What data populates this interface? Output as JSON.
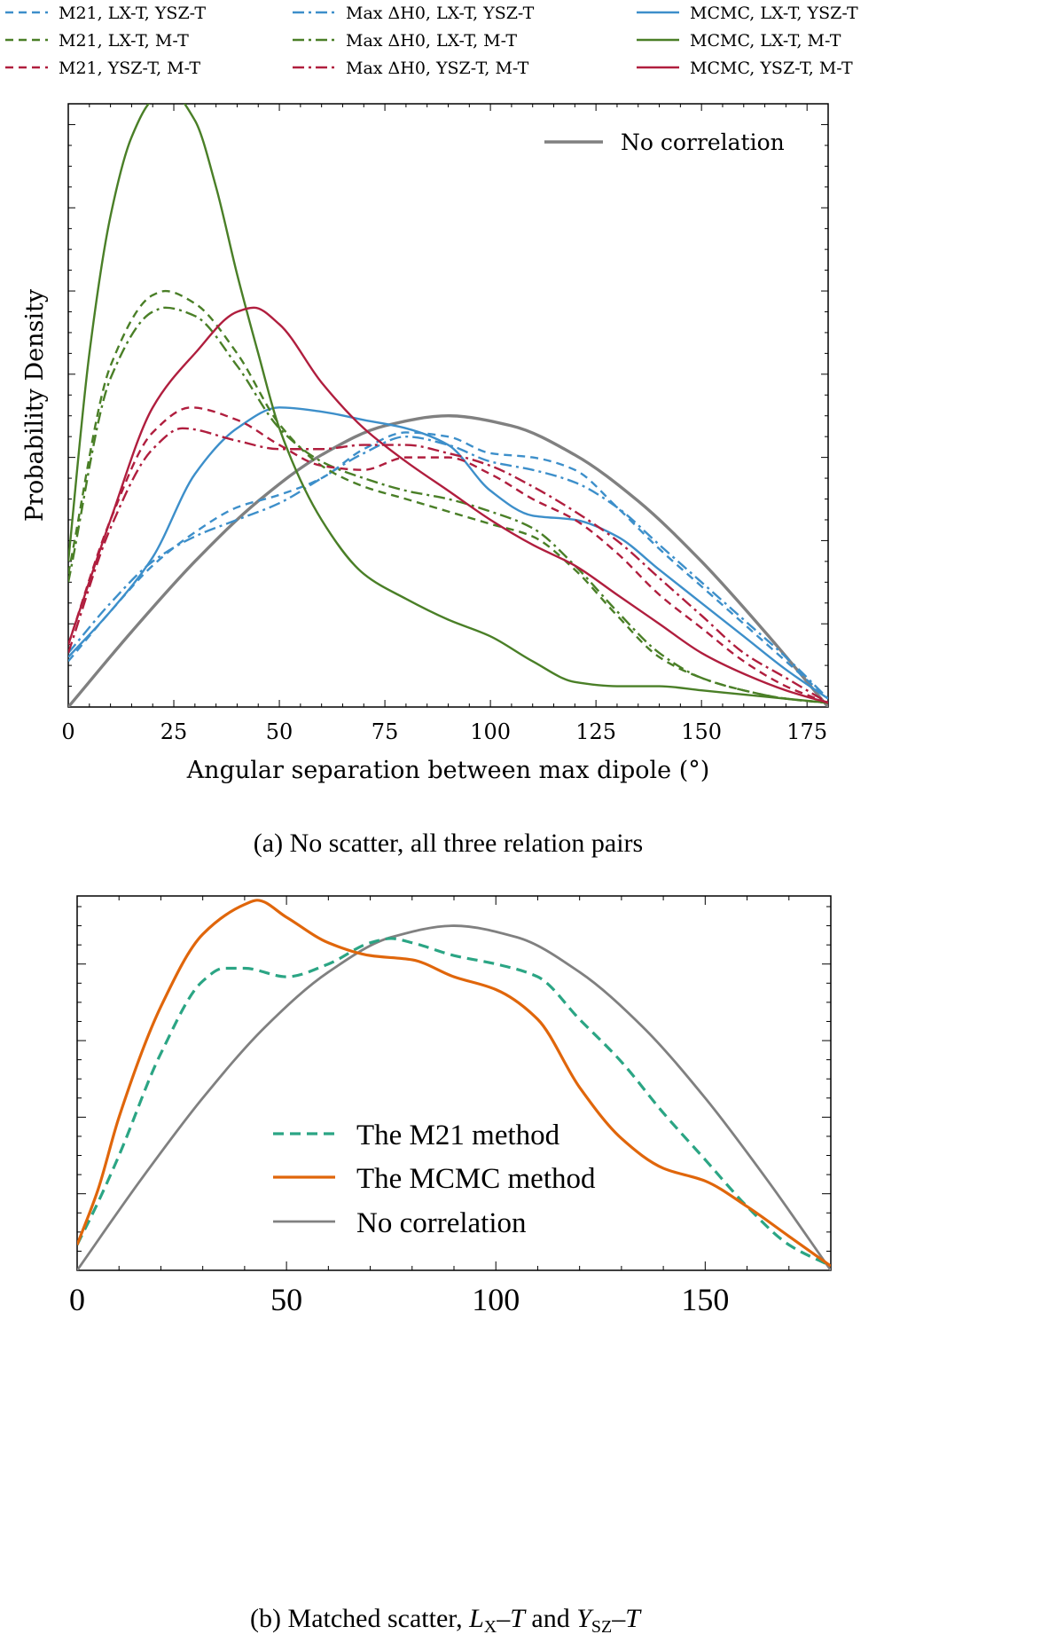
{
  "chart_data": [
    {
      "type": "line",
      "title": "",
      "caption": "(a) No scatter, all three relation pairs",
      "xlabel": "Angular separation between max dipole (°)",
      "ylabel": "Probability Density",
      "xlim": [
        0,
        180
      ],
      "ylim": [
        0,
        0.0145
      ],
      "xticks": [
        0,
        25,
        50,
        75,
        100,
        125,
        150,
        175
      ],
      "xtick_labels": [
        "0",
        "25",
        "50",
        "75",
        "100",
        "125",
        "150",
        "175"
      ],
      "top_legend": [
        "M21, LX-T, YSZ-T",
        "Max ΔH0, LX-T, YSZ-T",
        "MCMC, LX-T, YSZ-T",
        "M21, LX-T, M-T",
        "Max ΔH0, LX-T, M-T",
        "MCMC, LX-T, M-T",
        "M21, YSZ-T, M-T",
        "Max ΔH0, YSZ-T, M-T",
        "MCMC, YSZ-T, M-T"
      ],
      "inset_legend": [
        "No correlation"
      ],
      "legend_position": "above plot (3 columns) and upper-right",
      "colors": {
        "blue": "#3d8fca",
        "green": "#4a7f27",
        "red": "#b01e3e",
        "gray": "#808080"
      },
      "series": [
        {
          "name": "No correlation",
          "style": "solid",
          "color": "gray",
          "x": [
            0,
            15,
            30,
            45,
            60,
            75,
            90,
            105,
            120,
            135,
            150,
            165,
            180
          ],
          "y": [
            0,
            0.00181,
            0.0035,
            0.00495,
            0.00606,
            0.00676,
            0.007,
            0.00676,
            0.00606,
            0.00495,
            0.0035,
            0.00181,
            0
          ]
        },
        {
          "name": "M21, LX-T, YSZ-T",
          "style": "dashed",
          "color": "blue",
          "x": [
            0,
            10,
            20,
            30,
            40,
            50,
            60,
            70,
            80,
            90,
            100,
            110,
            120,
            130,
            140,
            150,
            160,
            170,
            180
          ],
          "y": [
            0.0011,
            0.0023,
            0.0034,
            0.0042,
            0.0048,
            0.0051,
            0.0055,
            0.0062,
            0.0066,
            0.0065,
            0.0061,
            0.006,
            0.0057,
            0.0048,
            0.0038,
            0.0029,
            0.002,
            0.0011,
            0.0002
          ]
        },
        {
          "name": "Max ΔH0, LX-T, YSZ-T",
          "style": "dashdot",
          "color": "blue",
          "x": [
            0,
            10,
            20,
            30,
            40,
            50,
            60,
            70,
            80,
            90,
            100,
            110,
            120,
            130,
            140,
            150,
            160,
            170,
            180
          ],
          "y": [
            0.0013,
            0.0025,
            0.0035,
            0.0041,
            0.0045,
            0.0049,
            0.0055,
            0.0061,
            0.0065,
            0.0063,
            0.0059,
            0.0057,
            0.0054,
            0.0048,
            0.0039,
            0.003,
            0.0021,
            0.0012,
            0.0002
          ]
        },
        {
          "name": "MCMC, LX-T, YSZ-T",
          "style": "solid",
          "color": "blue",
          "x": [
            0,
            10,
            20,
            30,
            40,
            50,
            60,
            70,
            80,
            90,
            100,
            110,
            120,
            130,
            140,
            150,
            160,
            170,
            180
          ],
          "y": [
            0.0012,
            0.0023,
            0.0036,
            0.0056,
            0.0067,
            0.0072,
            0.0071,
            0.0069,
            0.0067,
            0.0063,
            0.0052,
            0.0046,
            0.0045,
            0.0041,
            0.0033,
            0.0025,
            0.0017,
            0.0009,
            0.0002
          ]
        },
        {
          "name": "M21, LX-T, M-T",
          "style": "dashed",
          "color": "green",
          "x": [
            0,
            10,
            20,
            23,
            30,
            40,
            50,
            60,
            70,
            80,
            90,
            100,
            110,
            120,
            130,
            140,
            150,
            160,
            170,
            180
          ],
          "y": [
            0.0032,
            0.0082,
            0.0099,
            0.01,
            0.0097,
            0.0085,
            0.0068,
            0.0058,
            0.0053,
            0.005,
            0.0047,
            0.0044,
            0.0041,
            0.0033,
            0.0022,
            0.0012,
            0.0007,
            0.0004,
            0.0002,
            0.0001
          ]
        },
        {
          "name": "Max ΔH0, LX-T, M-T",
          "style": "dashdot",
          "color": "green",
          "x": [
            0,
            10,
            20,
            23,
            30,
            40,
            50,
            60,
            70,
            80,
            90,
            100,
            110,
            120,
            130,
            140,
            150,
            160,
            170,
            180
          ],
          "y": [
            0.003,
            0.0079,
            0.0095,
            0.0096,
            0.0094,
            0.0082,
            0.0067,
            0.0059,
            0.0055,
            0.0052,
            0.005,
            0.0047,
            0.0043,
            0.0034,
            0.0023,
            0.0013,
            0.0007,
            0.0004,
            0.0002,
            0.0001
          ]
        },
        {
          "name": "MCMC, LX-T, M-T",
          "style": "solid",
          "color": "green",
          "x": [
            0,
            5,
            10,
            15,
            20,
            24,
            30,
            35,
            40,
            45,
            50,
            60,
            70,
            80,
            90,
            100,
            110,
            120,
            130,
            140,
            150,
            160,
            170,
            180
          ],
          "y": [
            0.0035,
            0.0085,
            0.0118,
            0.0137,
            0.0146,
            0.0148,
            0.0141,
            0.0125,
            0.0104,
            0.0085,
            0.0067,
            0.0045,
            0.0032,
            0.0026,
            0.0021,
            0.0017,
            0.0011,
            0.0006,
            0.0005,
            0.0005,
            0.0004,
            0.0003,
            0.0002,
            0.0001
          ]
        },
        {
          "name": "M21, YSZ-T, M-T",
          "style": "dashed",
          "color": "red",
          "x": [
            0,
            10,
            20,
            29,
            40,
            50,
            60,
            70,
            80,
            90,
            100,
            110,
            120,
            130,
            140,
            150,
            160,
            170,
            180
          ],
          "y": [
            0.0015,
            0.0045,
            0.0066,
            0.0072,
            0.0069,
            0.0063,
            0.0058,
            0.0057,
            0.006,
            0.006,
            0.0056,
            0.005,
            0.0045,
            0.0037,
            0.0027,
            0.0019,
            0.0011,
            0.0005,
            0.0001
          ]
        },
        {
          "name": "Max ΔH0, YSZ-T, M-T",
          "style": "dashdot",
          "color": "red",
          "x": [
            0,
            10,
            20,
            27,
            40,
            50,
            60,
            70,
            80,
            90,
            100,
            110,
            120,
            130,
            140,
            150,
            160,
            170,
            180
          ],
          "y": [
            0.0013,
            0.0043,
            0.0062,
            0.0067,
            0.0064,
            0.0062,
            0.0062,
            0.0063,
            0.0063,
            0.0061,
            0.0058,
            0.0053,
            0.0047,
            0.004,
            0.0031,
            0.0022,
            0.0013,
            0.0007,
            0.0001
          ]
        },
        {
          "name": "MCMC, YSZ-T, M-T",
          "style": "solid",
          "color": "red",
          "x": [
            0,
            10,
            20,
            30,
            40,
            44,
            50,
            60,
            70,
            80,
            90,
            100,
            110,
            120,
            130,
            140,
            150,
            160,
            170,
            180
          ],
          "y": [
            0.0015,
            0.0045,
            0.0072,
            0.0085,
            0.0095,
            0.0096,
            0.0092,
            0.0078,
            0.0067,
            0.0059,
            0.0052,
            0.0045,
            0.0039,
            0.0034,
            0.0027,
            0.002,
            0.0013,
            0.0008,
            0.0004,
            0.0001
          ]
        }
      ]
    },
    {
      "type": "line",
      "title": "",
      "caption_parts": [
        "(b) Matched scatter, ",
        "L",
        "X",
        "–",
        "T",
        " and ",
        "Y",
        "SZ",
        "–",
        "T"
      ],
      "xlabel": "",
      "ylabel": "",
      "xlim": [
        0,
        180
      ],
      "ylim": [
        0,
        0.0088
      ],
      "xticks": [
        0,
        50,
        100,
        150
      ],
      "xtick_labels": [
        "0",
        "50",
        "100",
        "150"
      ],
      "legend": [
        "The M21 method",
        "The MCMC method",
        "No correlation"
      ],
      "legend_position": "lower-center",
      "colors": {
        "teal": "#2ba584",
        "orange": "#e0660b",
        "gray": "#808080"
      },
      "series": [
        {
          "name": "The M21 method",
          "style": "dashed",
          "color": "teal",
          "x": [
            0,
            5,
            10,
            20,
            30,
            35,
            40,
            50,
            60,
            70,
            75,
            80,
            90,
            100,
            110,
            120,
            130,
            140,
            150,
            160,
            170,
            180
          ],
          "y": [
            0.0006,
            0.0016,
            0.0027,
            0.0051,
            0.0068,
            0.0071,
            0.0071,
            0.0069,
            0.0072,
            0.0077,
            0.0078,
            0.0077,
            0.0074,
            0.0072,
            0.0069,
            0.0059,
            0.0049,
            0.0037,
            0.0026,
            0.0015,
            0.0006,
            0.0001
          ]
        },
        {
          "name": "The MCMC method",
          "style": "solid",
          "color": "orange",
          "x": [
            0,
            5,
            10,
            20,
            30,
            40,
            43,
            50,
            60,
            70,
            80,
            90,
            100,
            110,
            120,
            130,
            140,
            150,
            160,
            170,
            180
          ],
          "y": [
            0.0006,
            0.0019,
            0.0036,
            0.0062,
            0.0079,
            0.0086,
            0.0087,
            0.0083,
            0.0077,
            0.0074,
            0.0073,
            0.0069,
            0.0066,
            0.0059,
            0.0043,
            0.0031,
            0.0024,
            0.0021,
            0.0015,
            0.0008,
            0.0001
          ]
        },
        {
          "name": "No correlation",
          "style": "solid",
          "color": "gray",
          "x": [
            0,
            15,
            30,
            45,
            60,
            75,
            90,
            105,
            120,
            135,
            150,
            165,
            180
          ],
          "y": [
            0,
            0.0021,
            0.00405,
            0.00573,
            0.00701,
            0.00783,
            0.0081,
            0.00783,
            0.00701,
            0.00573,
            0.00405,
            0.0021,
            0
          ]
        }
      ]
    }
  ]
}
